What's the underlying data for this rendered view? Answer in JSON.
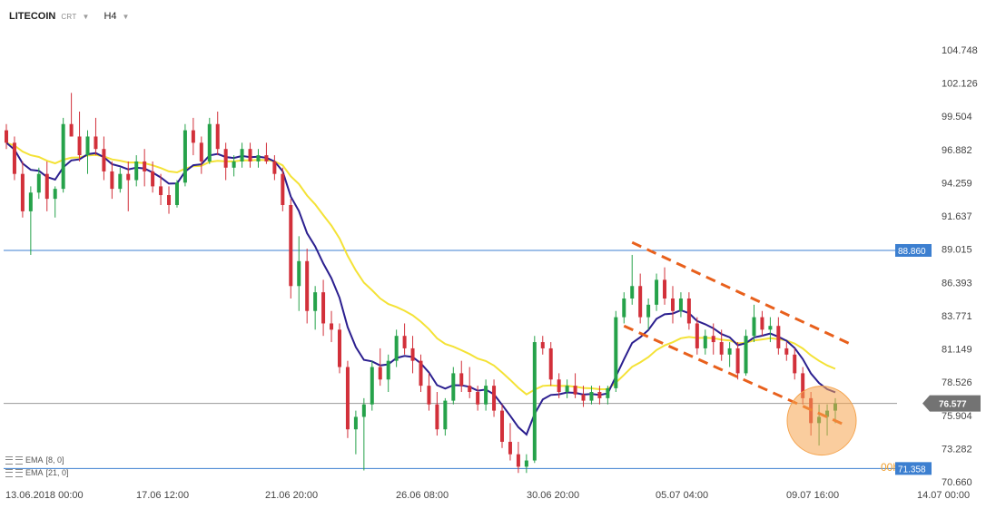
{
  "header": {
    "symbol": "LITECOIN",
    "type_label": "CRT",
    "timeframe": "H4",
    "caret_icon": "chevron-down-icon"
  },
  "legend": [
    {
      "label": "EMA",
      "params": "[8, 0]",
      "icon": "indicator-settings-icon"
    },
    {
      "label": "EMA",
      "params": "[21, 0]",
      "icon": "indicator-settings-icon"
    }
  ],
  "countdown": "00h 58m",
  "colors": {
    "up": "#26a24a",
    "down": "#d2303a",
    "ema_fast": "#2b1f8f",
    "ema_slow": "#f4e236",
    "resistance_line": "#3c7fd0",
    "support_line": "#3c7fd0",
    "current_price_line": "#9a9a9a",
    "current_price_tag": "#737373",
    "level_tag": "#3c7fd0",
    "trend_channel": "#e8601c",
    "highlight_circle": "#f5a44e"
  },
  "chart_data": {
    "type": "candlestick",
    "instrument": "LITECOIN",
    "timeframe": "H4",
    "x_tick_labels": [
      "13.06.2018  00:00",
      "17.06  12:00",
      "21.06  20:00",
      "26.06  08:00",
      "30.06  20:00",
      "05.07  04:00",
      "09.07  16:00",
      "14.07  00:00"
    ],
    "y_tick_labels": [
      "104.748",
      "102.126",
      "99.504",
      "96.882",
      "94.259",
      "91.637",
      "89.015",
      "86.393",
      "83.771",
      "81.149",
      "78.526",
      "75.904",
      "73.282",
      "70.660"
    ],
    "y_range": [
      70.0,
      107.5
    ],
    "horizontal_levels": [
      {
        "name": "resistance",
        "value": 88.86,
        "label": "88.860"
      },
      {
        "name": "current_price",
        "value": 76.577,
        "label": "76.577"
      },
      {
        "name": "support",
        "value": 71.358,
        "label": "71.358"
      }
    ],
    "ohlc_approx": [
      [
        98.5,
        99,
        97,
        97.5
      ],
      [
        97.5,
        98,
        94.5,
        95
      ],
      [
        95,
        96,
        91.5,
        92
      ],
      [
        92,
        94,
        88.5,
        93.5
      ],
      [
        93.5,
        95.5,
        93,
        95
      ],
      [
        95,
        96,
        92,
        93
      ],
      [
        93,
        94,
        91.5,
        93.8
      ],
      [
        93.8,
        99.5,
        93.5,
        99
      ],
      [
        99,
        101.5,
        98,
        98
      ],
      [
        98,
        100,
        96,
        96.5
      ],
      [
        96.5,
        98.5,
        95,
        98
      ],
      [
        98,
        99.5,
        96.5,
        97
      ],
      [
        97,
        98,
        94.5,
        95.2
      ],
      [
        95.2,
        96,
        93,
        93.8
      ],
      [
        93.8,
        95.5,
        93.5,
        95
      ],
      [
        95,
        96,
        92,
        94.5
      ],
      [
        94.5,
        96.5,
        94,
        96
      ],
      [
        96,
        97,
        94,
        95.2
      ],
      [
        95.2,
        96,
        93.5,
        94
      ],
      [
        94,
        95,
        92.5,
        93.3
      ],
      [
        93.3,
        94,
        91.8,
        92.5
      ],
      [
        92.5,
        94.5,
        92.3,
        94.3
      ],
      [
        94.3,
        99,
        94,
        98.5
      ],
      [
        98.5,
        99.5,
        96.5,
        97.5
      ],
      [
        97.5,
        98,
        95,
        96
      ],
      [
        96,
        99.5,
        95.8,
        99
      ],
      [
        99,
        100,
        96.5,
        97
      ],
      [
        97,
        97.5,
        94.5,
        95.5
      ],
      [
        95.5,
        96.5,
        94.8,
        96
      ],
      [
        96,
        97.5,
        95.5,
        97
      ],
      [
        97,
        97.5,
        95.5,
        96
      ],
      [
        96,
        97,
        95.5,
        96.5
      ],
      [
        96.5,
        97.5,
        95.8,
        96
      ],
      [
        96,
        96.5,
        94.5,
        95
      ],
      [
        95,
        95.5,
        92,
        92.5
      ],
      [
        92.5,
        93,
        85,
        86
      ],
      [
        86,
        90,
        84,
        88
      ],
      [
        88,
        89,
        83,
        84
      ],
      [
        84,
        86,
        82.5,
        85.5
      ],
      [
        85.5,
        86.5,
        82,
        83
      ],
      [
        83,
        84,
        81.5,
        82.5
      ],
      [
        82.5,
        83,
        79,
        79.5
      ],
      [
        79.5,
        80,
        73.8,
        74.5
      ],
      [
        74.5,
        76,
        72.5,
        75.5
      ],
      [
        75.5,
        77,
        71.2,
        76.5
      ],
      [
        76.5,
        80,
        76,
        79.5
      ],
      [
        79.5,
        81,
        78,
        78.5
      ],
      [
        78.5,
        80.5,
        77.5,
        80
      ],
      [
        80,
        82.5,
        79.5,
        82
      ],
      [
        82,
        83,
        80.5,
        81
      ],
      [
        81,
        82,
        79,
        80
      ],
      [
        80,
        80.5,
        77.5,
        78
      ],
      [
        78,
        79,
        76,
        76.5
      ],
      [
        76.5,
        77.5,
        74,
        74.5
      ],
      [
        74.5,
        77,
        74,
        76.8
      ],
      [
        76.8,
        79.5,
        76.5,
        79
      ],
      [
        79,
        80,
        77.5,
        78
      ],
      [
        78,
        79.5,
        77,
        77.5
      ],
      [
        77.5,
        78,
        76,
        76.5
      ],
      [
        76.5,
        78.5,
        76,
        78
      ],
      [
        78,
        78.5,
        75.5,
        76
      ],
      [
        76,
        76.5,
        73,
        73.5
      ],
      [
        73.5,
        75,
        72,
        72.5
      ],
      [
        72.5,
        73.5,
        71,
        71.5
      ],
      [
        71.5,
        72.5,
        71,
        72
      ],
      [
        72,
        82,
        71.8,
        81.5
      ],
      [
        81.5,
        82,
        80.5,
        81
      ],
      [
        81,
        81.5,
        78,
        78.5
      ],
      [
        78.5,
        79,
        77,
        77.5
      ],
      [
        77.5,
        78.5,
        77,
        78
      ],
      [
        78,
        79,
        77,
        77.3
      ],
      [
        77.3,
        78,
        76.3,
        76.8
      ],
      [
        76.8,
        78,
        76.5,
        77.5
      ],
      [
        77.5,
        78,
        76.5,
        77
      ],
      [
        77,
        78,
        76.5,
        77.8
      ],
      [
        77.8,
        84,
        77.5,
        83.5
      ],
      [
        83.5,
        85.5,
        83,
        85
      ],
      [
        85,
        88.5,
        84.5,
        86
      ],
      [
        86,
        87,
        83,
        83.5
      ],
      [
        83.5,
        85,
        82.5,
        84.5
      ],
      [
        84.5,
        87,
        84,
        86.5
      ],
      [
        86.5,
        87.5,
        84.5,
        85
      ],
      [
        85,
        86,
        83,
        84
      ],
      [
        84,
        85.5,
        83.5,
        85
      ],
      [
        85,
        85.5,
        82.5,
        83
      ],
      [
        83,
        83.5,
        80.5,
        81
      ],
      [
        81,
        82.5,
        80.5,
        82
      ],
      [
        82,
        83,
        80.5,
        81.5
      ],
      [
        81.5,
        82.5,
        80,
        80.5
      ],
      [
        80.5,
        81.5,
        79.5,
        81
      ],
      [
        81,
        81.5,
        78.5,
        79
      ],
      [
        79,
        82.5,
        78.8,
        82
      ],
      [
        82,
        84.5,
        81.5,
        83.5
      ],
      [
        83.5,
        84,
        82,
        82.5
      ],
      [
        82.5,
        83.5,
        81.5,
        82.8
      ],
      [
        82.8,
        83.5,
        80.5,
        81
      ],
      [
        81,
        81.5,
        80,
        80.5
      ],
      [
        80.5,
        81,
        78.5,
        79
      ],
      [
        79,
        79.5,
        76.5,
        77
      ],
      [
        77,
        77.5,
        74,
        75
      ],
      [
        75,
        76.5,
        73.2,
        75.5
      ],
      [
        75.5,
        76.5,
        74,
        76
      ],
      [
        76,
        77,
        75,
        76.577
      ]
    ],
    "series": [
      {
        "name": "EMA [8, 0]",
        "type": "line",
        "color": "#2b1f8f"
      },
      {
        "name": "EMA [21, 0]",
        "type": "line",
        "color": "#f4e236"
      }
    ],
    "annotations": [
      {
        "type": "descending_channel",
        "color": "#e8601c",
        "style": "dashed"
      },
      {
        "type": "circle_highlight",
        "color": "#f5a44e",
        "target": "latest candles"
      },
      {
        "type": "countdown",
        "text": "00h 58m"
      }
    ],
    "grid": false
  }
}
